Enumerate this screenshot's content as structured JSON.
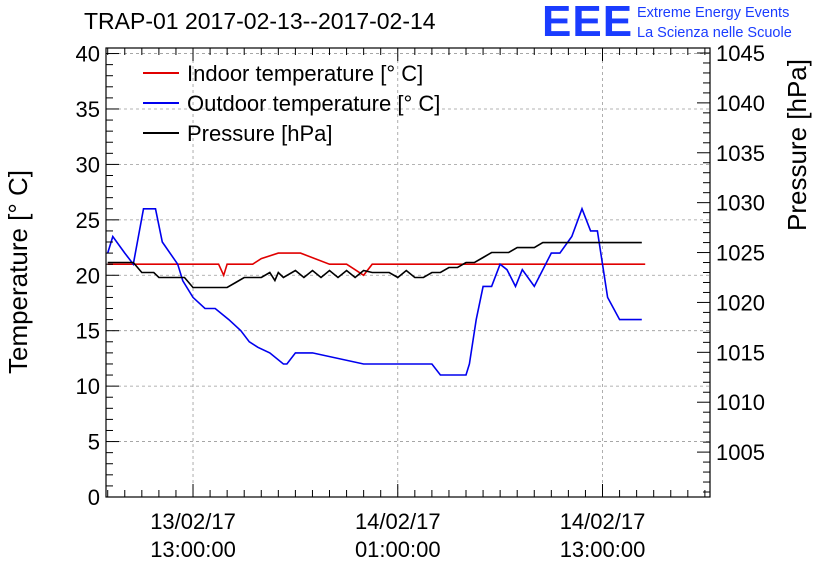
{
  "header": {
    "title": "TRAP-01 2017-02-13--2017-02-14",
    "logo_text": "EEE",
    "project_line1": "Extreme Energy Events",
    "project_line2": "La Scienza nelle Scuole"
  },
  "colors": {
    "indoor": "#e00000",
    "outdoor": "#0000ee",
    "pressure": "#000000",
    "logo": "#1a3cff",
    "grid": "#9a9a9a"
  },
  "chart_data": {
    "type": "line",
    "title": "TRAP-01 2017-02-13--2017-02-14",
    "xlabel": "",
    "ylabel": "Temperature [° C]",
    "y2label": "Pressure [hPa]",
    "ylim": [
      0,
      40.5
    ],
    "y2lim": [
      1000.5,
      1045.5
    ],
    "xlim": [
      -5.1,
      30.3
    ],
    "x_unit": "hours since 13/02/17 13:00:00",
    "grid": true,
    "legend_position": "top-left",
    "yticks": [
      0,
      5,
      10,
      15,
      20,
      25,
      30,
      35,
      40
    ],
    "y2ticks": [
      1005,
      1010,
      1015,
      1020,
      1025,
      1030,
      1035,
      1040,
      1045
    ],
    "xticks": [
      {
        "x": 0,
        "line1": "13/02/17",
        "line2": "13:00:00"
      },
      {
        "x": 12,
        "line1": "14/02/17",
        "line2": "01:00:00"
      },
      {
        "x": 24,
        "line1": "14/02/17",
        "line2": "13:00:00"
      }
    ],
    "series": [
      {
        "name": "Indoor temperature [° C]",
        "axis": "left",
        "color": "#e00000",
        "x": [
          -5.0,
          -3.5,
          -2.0,
          0.0,
          1.5,
          1.8,
          2.0,
          3.5,
          4.0,
          5.0,
          6.0,
          6.3,
          8.0,
          9.0,
          9.5,
          10.0,
          10.5,
          12.0,
          16.0,
          20.0,
          24.0,
          26.5
        ],
        "values": [
          21,
          21,
          21,
          21,
          21,
          20,
          21,
          21,
          21.5,
          22,
          22,
          22,
          21,
          21,
          20.5,
          20,
          21,
          21,
          21,
          21,
          21,
          21
        ]
      },
      {
        "name": "Outdoor temperature [° C]",
        "axis": "left",
        "color": "#0000ee",
        "x": [
          -5.0,
          -4.7,
          -4.0,
          -3.5,
          -3.2,
          -2.9,
          -2.2,
          -1.8,
          -0.9,
          -0.6,
          0.0,
          0.7,
          1.3,
          2.1,
          2.8,
          3.3,
          3.8,
          4.5,
          5.3,
          5.5,
          6.0,
          6.3,
          7.0,
          10.0,
          11.0,
          14.0,
          14.5,
          16.0,
          16.2,
          16.6,
          17.0,
          17.5,
          18.0,
          18.4,
          18.9,
          19.3,
          20.0,
          21.0,
          21.5,
          22.2,
          22.8,
          23.3,
          23.7,
          24.3,
          25.0,
          26.3
        ],
        "values": [
          22,
          23.5,
          22,
          21,
          23.5,
          26,
          26,
          23,
          21,
          19.5,
          18,
          17,
          17,
          16,
          15,
          14,
          13.5,
          13,
          12,
          12,
          13,
          13,
          13,
          12,
          12,
          12,
          11,
          11,
          12,
          16,
          19,
          19,
          21,
          20.5,
          19,
          20.5,
          19,
          22,
          22,
          23.5,
          26,
          24,
          24,
          18,
          16,
          16
        ]
      },
      {
        "name": "Pressure [hPa]",
        "axis": "right",
        "color": "#000000",
        "x": [
          -5.0,
          -3.5,
          -3.0,
          -2.3,
          -2.0,
          -0.5,
          0.0,
          2.0,
          2.5,
          3.0,
          4.0,
          4.5,
          4.8,
          5.0,
          5.3,
          6.0,
          6.5,
          7.0,
          7.5,
          8.0,
          8.5,
          9.0,
          9.5,
          10.0,
          10.5,
          11.0,
          11.5,
          12.0,
          12.5,
          13.0,
          13.5,
          14.0,
          14.5,
          15.0,
          15.5,
          16.0,
          16.5,
          17.0,
          17.5,
          18.0,
          18.5,
          19.0,
          19.5,
          20.0,
          20.5,
          21.0,
          22.0,
          23.0,
          24.0,
          25.0,
          26.3
        ],
        "values": [
          1024,
          1024,
          1023,
          1023,
          1022.5,
          1022.5,
          1021.5,
          1021.5,
          1022,
          1022.5,
          1022.5,
          1023,
          1022.2,
          1023,
          1022.5,
          1023.2,
          1022.5,
          1023.2,
          1022.5,
          1023.2,
          1022.5,
          1023.2,
          1022.5,
          1023.2,
          1023,
          1023,
          1023,
          1022.5,
          1023.2,
          1022.5,
          1022.5,
          1023,
          1023,
          1023.5,
          1023.5,
          1024,
          1024,
          1024.5,
          1025,
          1025,
          1025,
          1025.5,
          1025.5,
          1025.5,
          1026,
          1026,
          1026,
          1026,
          1026,
          1026,
          1026
        ]
      }
    ]
  }
}
